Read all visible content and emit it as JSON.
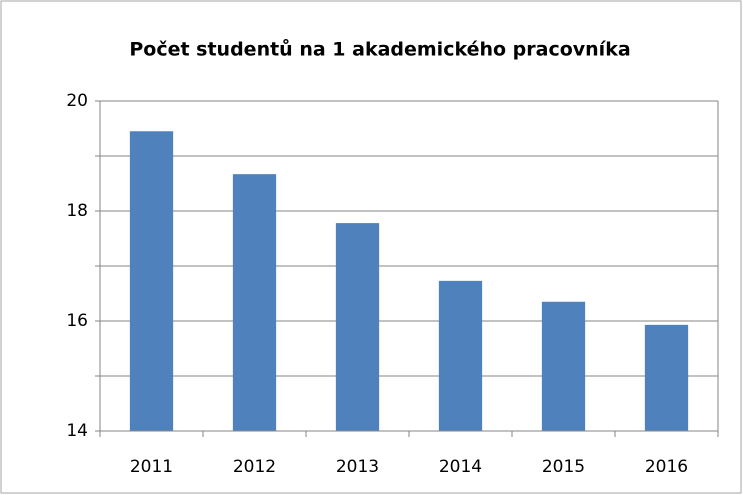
{
  "chart_data": {
    "type": "bar",
    "title": "Počet studentů na 1 akademického pracovníka",
    "categories": [
      "2011",
      "2012",
      "2013",
      "2014",
      "2015",
      "2016"
    ],
    "values": [
      19.45,
      18.67,
      17.78,
      16.73,
      16.35,
      15.93
    ],
    "color": "#4f81bd",
    "ylim": [
      14,
      20
    ],
    "yticks": [
      14,
      16,
      18,
      20
    ],
    "minor_yticks": [
      15,
      17,
      19
    ],
    "grid": true
  }
}
